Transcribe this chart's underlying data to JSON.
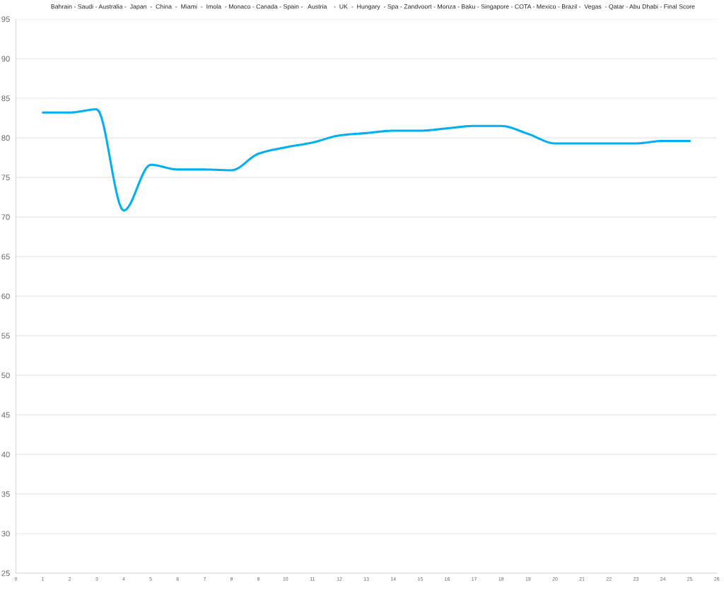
{
  "chart_data": {
    "type": "line",
    "title": "Bahrain - Saudi - Australia -  Japan  -  China  -  Miami  -  Imola  - Monaco - Canada - Spain -   Austria    -  UK  -  Hungary  - Spa - Zandvoort - Monza - Baku - Singapore - COTA - Mexico - Brazil -  Vegas  - Qatar - Abu Dhabi - Final Score",
    "x": [
      1,
      2,
      3,
      4,
      5,
      6,
      7,
      8,
      9,
      10,
      11,
      12,
      13,
      14,
      15,
      16,
      17,
      18,
      19,
      20,
      21,
      22,
      23,
      24,
      25
    ],
    "series": [
      {
        "color": "#00b0f0",
        "values": [
          83.2,
          83.2,
          83.6,
          70.8,
          76.6,
          76.0,
          76.0,
          75.9,
          78.0,
          78.8,
          79.4,
          80.3,
          80.6,
          80.9,
          80.9,
          81.2,
          81.5,
          81.5,
          80.5,
          79.3,
          79.3,
          79.3,
          79.3,
          79.6,
          79.6
        ]
      }
    ],
    "xlim": [
      0,
      26
    ],
    "xticks": [
      0,
      1,
      2,
      3,
      4,
      5,
      6,
      7,
      8,
      9,
      10,
      11,
      12,
      13,
      14,
      15,
      16,
      17,
      18,
      19,
      20,
      21,
      22,
      23,
      24,
      25,
      26
    ],
    "ylim": [
      25,
      95
    ],
    "yticks": [
      25,
      30,
      35,
      40,
      45,
      50,
      55,
      60,
      65,
      70,
      75,
      80,
      85,
      90,
      95
    ],
    "grid": "y",
    "marker": "none",
    "line_style": "solid"
  }
}
